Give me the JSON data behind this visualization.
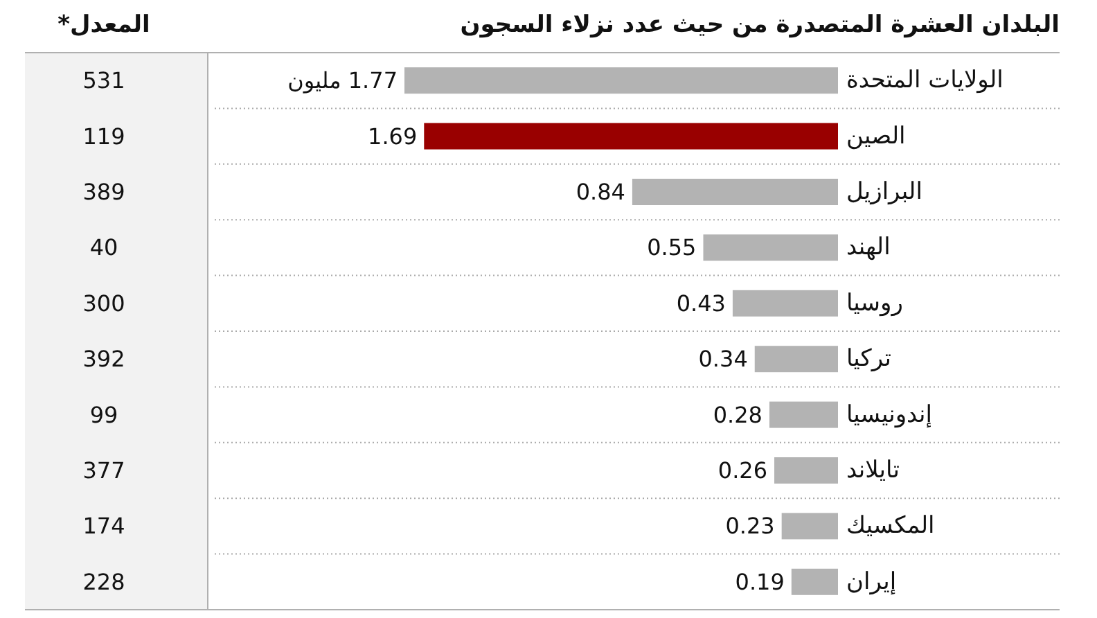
{
  "chart_data": {
    "type": "bar",
    "orientation": "horizontal",
    "title": "البلدان العشرة المتصدرة من حيث عدد نزلاء السجون",
    "categories": [
      "الولايات المتحدة",
      "الصين",
      "البرازيل",
      "الهند",
      "روسيا",
      "تركيا",
      "إندونيسيا",
      "تايلاند",
      "المكسيك",
      "إيران"
    ],
    "values": [
      1.77,
      1.69,
      0.84,
      0.55,
      0.43,
      0.34,
      0.28,
      0.26,
      0.23,
      0.19
    ],
    "colors": [
      "#b3b3b3",
      "#990000",
      "#b3b3b3",
      "#b3b3b3",
      "#b3b3b3",
      "#b3b3b3",
      "#b3b3b3",
      "#b3b3b3",
      "#b3b3b3",
      "#b3b3b3"
    ],
    "value_labels": [
      "1.77 مليون",
      "1.69",
      "0.84",
      "0.55",
      "0.43",
      "0.34",
      "0.28",
      "0.26",
      "0.23",
      "0.19"
    ],
    "annotations": [
      "المعدل*",
      "531",
      "119",
      "389",
      "40",
      "300",
      "392",
      "99",
      "377",
      "174",
      "228"
    ]
  }
}
